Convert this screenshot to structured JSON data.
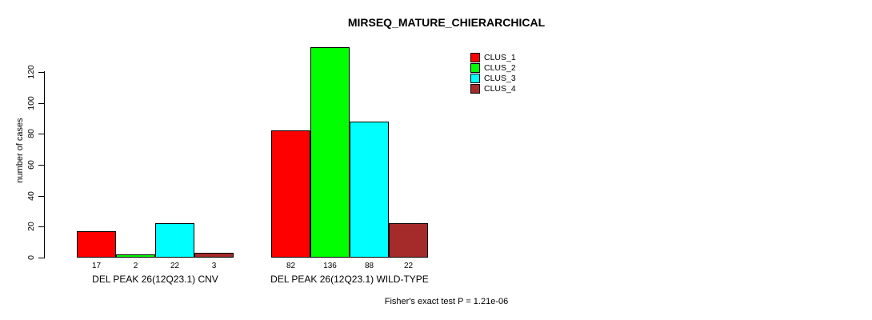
{
  "chart_data": {
    "type": "bar",
    "title": "MIRSEQ_MATURE_CHIERARCHICAL",
    "ylabel": "number of cases",
    "xlabel": "",
    "categories": [
      "DEL PEAK 26(12Q23.1) CNV",
      "DEL PEAK 26(12Q23.1) WILD-TYPE"
    ],
    "series": [
      {
        "name": "CLUS_1",
        "color": "#ff0000",
        "values": [
          17,
          82
        ]
      },
      {
        "name": "CLUS_2",
        "color": "#00ff00",
        "values": [
          2,
          136
        ]
      },
      {
        "name": "CLUS_3",
        "color": "#00ffff",
        "values": [
          22,
          88
        ]
      },
      {
        "name": "CLUS_4",
        "color": "#a52a2a",
        "values": [
          3,
          22
        ]
      }
    ],
    "yticks": [
      0,
      20,
      40,
      60,
      80,
      100,
      120
    ],
    "ylim": [
      0,
      136
    ],
    "grid": false,
    "bar_value_labels": true,
    "legend_position": "top-right",
    "footnote": "Fisher's exact test P = 1.21e-06"
  }
}
